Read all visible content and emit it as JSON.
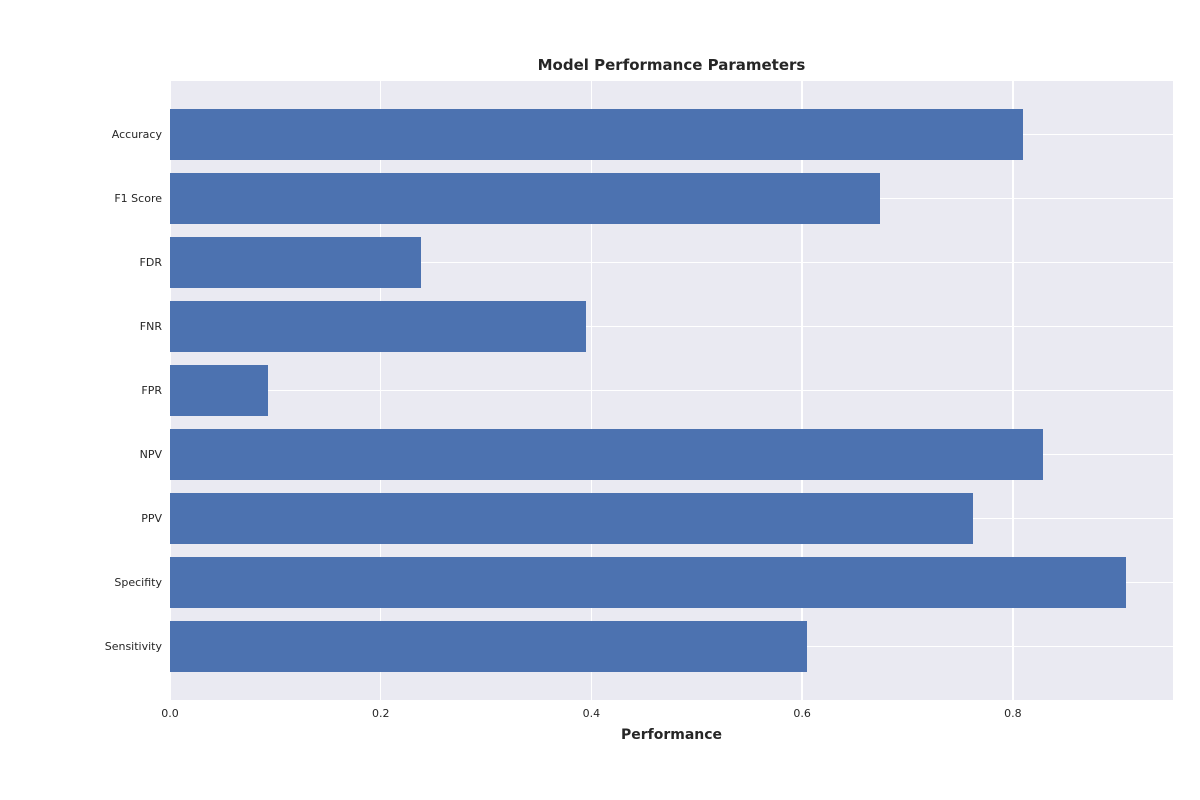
{
  "chart_data": {
    "type": "bar",
    "orientation": "horizontal",
    "title": "Model Performance Parameters",
    "xlabel": "Performance",
    "ylabel": "",
    "categories": [
      "Accuracy",
      "F1 Score",
      "FDR",
      "FNR",
      "FPR",
      "NPV",
      "PPV",
      "Specifity",
      "Sensitivity"
    ],
    "values": [
      0.81,
      0.674,
      0.238,
      0.395,
      0.093,
      0.829,
      0.762,
      0.907,
      0.605
    ],
    "xlim": [
      0,
      0.952
    ],
    "xticks": [
      0.0,
      0.2,
      0.4,
      0.6,
      0.8
    ],
    "xtick_labels": [
      "0.0",
      "0.2",
      "0.4",
      "0.6",
      "0.8"
    ],
    "grid": true,
    "legend_visible": false,
    "colors": {
      "bar": "#4c72b0",
      "plot_background": "#eaeaf2",
      "gridline": "#ffffff",
      "text": "#262626",
      "figure_background": "#ffffff"
    }
  }
}
